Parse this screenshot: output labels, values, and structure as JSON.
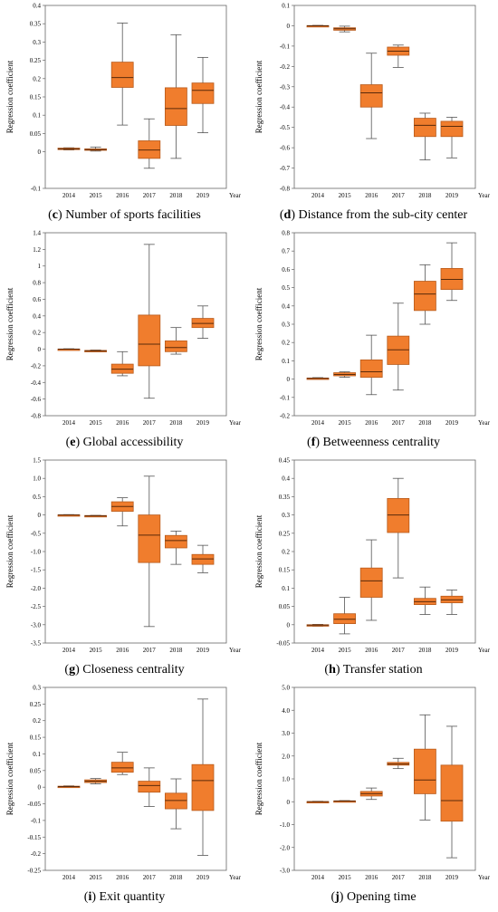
{
  "chart_data": [
    {
      "id": "c",
      "type": "box",
      "letter": "c",
      "title": "Number of sports facilities",
      "ylabel": "Regression coefficient",
      "xlabel": "Year",
      "categories": [
        "2014",
        "2015",
        "2016",
        "2017",
        "2018",
        "2019"
      ],
      "yticks": [
        "-0.1",
        "0",
        "0.05",
        "0.1",
        "0.15",
        "0.2",
        "0.25",
        "0.3",
        "0.35",
        "0.4"
      ],
      "ylim": [
        -0.1,
        0.4
      ],
      "boxes": [
        {
          "min": 0.005,
          "q1": 0.006,
          "median": 0.008,
          "q3": 0.01,
          "max": 0.011
        },
        {
          "min": 0.002,
          "q1": 0.004,
          "median": 0.006,
          "q3": 0.008,
          "max": 0.013
        },
        {
          "min": 0.073,
          "q1": 0.176,
          "median": 0.203,
          "q3": 0.245,
          "max": 0.352
        },
        {
          "min": -0.045,
          "q1": -0.018,
          "median": 0.005,
          "q3": 0.03,
          "max": 0.09
        },
        {
          "min": -0.018,
          "q1": 0.072,
          "median": 0.118,
          "q3": 0.175,
          "max": 0.32
        },
        {
          "min": 0.052,
          "q1": 0.132,
          "median": 0.168,
          "q3": 0.188,
          "max": 0.258
        }
      ]
    },
    {
      "id": "d",
      "type": "box",
      "letter": "d",
      "title": "Distance from the sub-city center",
      "ylabel": "Regression coefficient",
      "xlabel": "Year",
      "categories": [
        "2014",
        "2015",
        "2016",
        "2017",
        "2018",
        "2019"
      ],
      "yticks": [
        "-0.8",
        "-0.7",
        "-0.6",
        "-0.5",
        "-0.4",
        "-0.3",
        "-0.2",
        "-0.1",
        "0",
        "0.1"
      ],
      "ylim": [
        -0.8,
        0.1
      ],
      "boxes": [
        {
          "min": -0.002,
          "q1": -0.001,
          "median": 0.0,
          "q3": 0.001,
          "max": 0.002
        },
        {
          "min": -0.03,
          "q1": -0.022,
          "median": -0.015,
          "q3": -0.01,
          "max": -0.002
        },
        {
          "min": -0.555,
          "q1": -0.4,
          "median": -0.33,
          "q3": -0.29,
          "max": -0.135
        },
        {
          "min": -0.205,
          "q1": -0.145,
          "median": -0.125,
          "q3": -0.105,
          "max": -0.095
        },
        {
          "min": -0.66,
          "q1": -0.545,
          "median": -0.49,
          "q3": -0.455,
          "max": -0.43
        },
        {
          "min": -0.65,
          "q1": -0.545,
          "median": -0.495,
          "q3": -0.47,
          "max": -0.45
        }
      ]
    },
    {
      "id": "e",
      "type": "box",
      "letter": "e",
      "title": "Global accessibility",
      "ylabel": "Regression coefficient",
      "xlabel": "Year",
      "categories": [
        "2014",
        "2015",
        "2016",
        "2017",
        "2018",
        "2019"
      ],
      "yticks": [
        "-0.8",
        "-0.6",
        "-0.4",
        "-0.2",
        "0",
        "0.2",
        "0.4",
        "0.6",
        "0.8",
        "1",
        "1.2",
        "1.4"
      ],
      "ylim": [
        -0.8,
        1.4
      ],
      "boxes": [
        {
          "min": -0.005,
          "q1": -0.002,
          "median": 0.0,
          "q3": 0.002,
          "max": 0.005
        },
        {
          "min": -0.03,
          "q1": -0.025,
          "median": -0.02,
          "q3": -0.015,
          "max": -0.01
        },
        {
          "min": -0.32,
          "q1": -0.29,
          "median": -0.24,
          "q3": -0.18,
          "max": -0.03
        },
        {
          "min": -0.59,
          "q1": -0.2,
          "median": 0.06,
          "q3": 0.41,
          "max": 1.26
        },
        {
          "min": -0.06,
          "q1": -0.03,
          "median": 0.02,
          "q3": 0.1,
          "max": 0.26
        },
        {
          "min": 0.13,
          "q1": 0.26,
          "median": 0.31,
          "q3": 0.37,
          "max": 0.52
        }
      ]
    },
    {
      "id": "f",
      "type": "box",
      "letter": "f",
      "title": "Betweenness centrality",
      "ylabel": "Regression coefficient",
      "xlabel": "Year",
      "categories": [
        "2014",
        "2015",
        "2016",
        "2017",
        "2018",
        "2019"
      ],
      "yticks": [
        "-0.2",
        "-0.1",
        "0",
        "0.1",
        "0.2",
        "0.3",
        "0.4",
        "0.5",
        "0.6",
        "0.7",
        "0.8"
      ],
      "ylim": [
        -0.2,
        0.8
      ],
      "boxes": [
        {
          "min": 0.0,
          "q1": 0.002,
          "median": 0.004,
          "q3": 0.006,
          "max": 0.008
        },
        {
          "min": 0.01,
          "q1": 0.018,
          "median": 0.025,
          "q3": 0.035,
          "max": 0.04
        },
        {
          "min": -0.085,
          "q1": 0.01,
          "median": 0.04,
          "q3": 0.105,
          "max": 0.24
        },
        {
          "min": -0.06,
          "q1": 0.08,
          "median": 0.16,
          "q3": 0.235,
          "max": 0.415
        },
        {
          "min": 0.3,
          "q1": 0.375,
          "median": 0.465,
          "q3": 0.535,
          "max": 0.625
        },
        {
          "min": 0.43,
          "q1": 0.49,
          "median": 0.545,
          "q3": 0.605,
          "max": 0.745
        }
      ]
    },
    {
      "id": "g",
      "type": "box",
      "letter": "g",
      "title": "Closeness centrality",
      "ylabel": "Regression coefficient",
      "xlabel": "Year",
      "categories": [
        "2014",
        "2015",
        "2016",
        "2017",
        "2018",
        "2019"
      ],
      "yticks": [
        "-3.5",
        "-3.0",
        "-2.5",
        "-2.0",
        "-1.5",
        "-1.0",
        "-0.5",
        "0",
        "0.5",
        "1.0",
        "1.5"
      ],
      "ylim": [
        -3.5,
        1.5
      ],
      "boxes": [
        {
          "min": -0.01,
          "q1": -0.005,
          "median": 0.0,
          "q3": 0.005,
          "max": 0.01
        },
        {
          "min": -0.04,
          "q1": -0.035,
          "median": -0.025,
          "q3": -0.015,
          "max": -0.01
        },
        {
          "min": -0.3,
          "q1": 0.1,
          "median": 0.23,
          "q3": 0.36,
          "max": 0.47
        },
        {
          "min": -3.05,
          "q1": -1.3,
          "median": -0.55,
          "q3": 0.0,
          "max": 1.06
        },
        {
          "min": -1.35,
          "q1": -0.9,
          "median": -0.7,
          "q3": -0.56,
          "max": -0.44
        },
        {
          "min": -1.58,
          "q1": -1.35,
          "median": -1.2,
          "q3": -1.08,
          "max": -0.83
        }
      ]
    },
    {
      "id": "h",
      "type": "box",
      "letter": "h",
      "title": "Transfer station",
      "ylabel": "Regression coefficient",
      "xlabel": "Year",
      "categories": [
        "2014",
        "2015",
        "2016",
        "2017",
        "2018",
        "2019"
      ],
      "yticks": [
        "-0.05",
        "0",
        "0.05",
        "0.1",
        "0.15",
        "0.2",
        "0.25",
        "0.3",
        "0.35",
        "0.4",
        "0.45"
      ],
      "ylim": [
        -0.05,
        0.45
      ],
      "boxes": [
        {
          "min": -0.004,
          "q1": -0.002,
          "median": -0.001,
          "q3": 0.0,
          "max": 0.001
        },
        {
          "min": -0.025,
          "q1": 0.003,
          "median": 0.015,
          "q3": 0.03,
          "max": 0.075
        },
        {
          "min": 0.012,
          "q1": 0.075,
          "median": 0.12,
          "q3": 0.155,
          "max": 0.232
        },
        {
          "min": 0.128,
          "q1": 0.252,
          "median": 0.3,
          "q3": 0.345,
          "max": 0.4
        },
        {
          "min": 0.028,
          "q1": 0.055,
          "median": 0.063,
          "q3": 0.072,
          "max": 0.103
        },
        {
          "min": 0.028,
          "q1": 0.06,
          "median": 0.068,
          "q3": 0.078,
          "max": 0.095
        }
      ]
    },
    {
      "id": "i",
      "type": "box",
      "letter": "i",
      "title": "Exit quantity",
      "ylabel": "Regression coefficient",
      "xlabel": "Year",
      "categories": [
        "2014",
        "2015",
        "2016",
        "2017",
        "2018",
        "2019"
      ],
      "yticks": [
        "-0.25",
        "-0.2",
        "-0.15",
        "-0.1",
        "-0.05",
        "0",
        "0.05",
        "0.1",
        "0.15",
        "0.2",
        "0.25",
        "0.3"
      ],
      "ylim": [
        -0.25,
        0.3
      ],
      "boxes": [
        {
          "min": 0.0,
          "q1": 0.001,
          "median": 0.002,
          "q3": 0.003,
          "max": 0.004
        },
        {
          "min": 0.01,
          "q1": 0.014,
          "median": 0.018,
          "q3": 0.022,
          "max": 0.026
        },
        {
          "min": 0.038,
          "q1": 0.045,
          "median": 0.058,
          "q3": 0.075,
          "max": 0.105
        },
        {
          "min": -0.058,
          "q1": -0.015,
          "median": 0.005,
          "q3": 0.018,
          "max": 0.058
        },
        {
          "min": -0.125,
          "q1": -0.065,
          "median": -0.04,
          "q3": -0.018,
          "max": 0.025
        },
        {
          "min": -0.205,
          "q1": -0.07,
          "median": 0.02,
          "q3": 0.068,
          "max": 0.265
        }
      ]
    },
    {
      "id": "j",
      "type": "box",
      "letter": "j",
      "title": "Opening time",
      "ylabel": "Regression coefficient",
      "xlabel": "Year",
      "categories": [
        "2014",
        "2015",
        "2016",
        "2017",
        "2018",
        "2019"
      ],
      "yticks": [
        "-3.0",
        "-2.0",
        "-1.0",
        "0",
        "1.0",
        "2.0",
        "3.0",
        "4.0",
        "5.0"
      ],
      "ylim": [
        -3.0,
        5.0
      ],
      "boxes": [
        {
          "min": -0.02,
          "q1": -0.01,
          "median": 0.0,
          "q3": 0.01,
          "max": 0.02
        },
        {
          "min": 0.01,
          "q1": 0.02,
          "median": 0.03,
          "q3": 0.04,
          "max": 0.05
        },
        {
          "min": 0.1,
          "q1": 0.25,
          "median": 0.35,
          "q3": 0.45,
          "max": 0.6
        },
        {
          "min": 1.45,
          "q1": 1.6,
          "median": 1.65,
          "q3": 1.72,
          "max": 1.9
        },
        {
          "min": -0.8,
          "q1": 0.35,
          "median": 0.95,
          "q3": 2.3,
          "max": 3.8
        },
        {
          "min": -2.45,
          "q1": -0.85,
          "median": 0.05,
          "q3": 1.6,
          "max": 3.3
        }
      ]
    }
  ],
  "colors": {
    "box_fill": "#f07d2d",
    "box_stroke": "#b85a1a",
    "line": "#555555",
    "frame": "#666666"
  }
}
